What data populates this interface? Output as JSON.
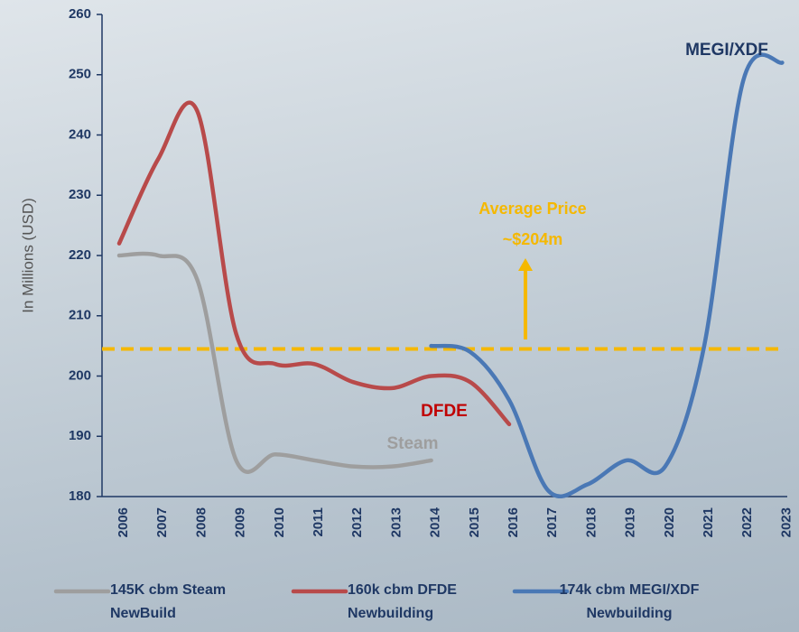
{
  "chart_data": {
    "type": "line",
    "y_label": "In Millions (USD)",
    "categories": [
      "2006",
      "2007",
      "2008",
      "2009",
      "2010",
      "2011",
      "2012",
      "2013",
      "2014",
      "2015",
      "2016",
      "2017",
      "2018",
      "2019",
      "2020",
      "2021",
      "2022",
      "2023"
    ],
    "series": [
      {
        "name": "145K cbm Steam NewBuild",
        "color": "#9e9e9e",
        "label": "Steam",
        "values": [
          220,
          220,
          216,
          186,
          187,
          186,
          185,
          185,
          186,
          null,
          null,
          null,
          null,
          null,
          null,
          null,
          null,
          null
        ]
      },
      {
        "name": "160k cbm DFDE Newbuilding",
        "color": "#b84a4a",
        "label": "DFDE",
        "values": [
          222,
          236,
          244,
          207,
          202,
          202,
          199,
          198,
          200,
          199,
          192,
          null,
          null,
          null,
          null,
          null,
          null,
          null
        ]
      },
      {
        "name": "174k cbm MEGI/XDF Newbuilding",
        "color": "#4a78b5",
        "label": "MEGI/XDF",
        "values": [
          null,
          null,
          null,
          null,
          null,
          null,
          null,
          null,
          205,
          204,
          196,
          181,
          182,
          186,
          185,
          205,
          249,
          252
        ]
      }
    ],
    "reference_line": {
      "value": 204.5,
      "color": "#f5b800"
    },
    "annotations": [
      "Average Price",
      "~$204m"
    ],
    "ylim": [
      180,
      260
    ],
    "yticks": [
      180,
      190,
      200,
      210,
      220,
      230,
      240,
      250,
      260
    ]
  }
}
